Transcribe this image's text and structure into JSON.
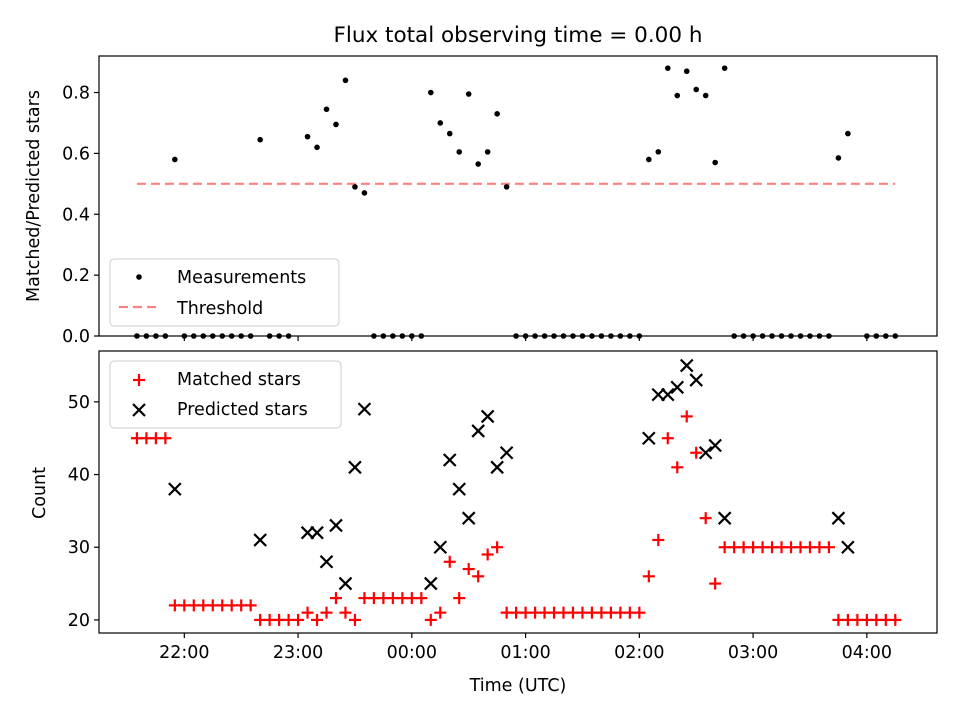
{
  "chart_data": [
    {
      "type": "scatter",
      "title": "Flux total observing time = 0.00 h",
      "xlabel": "",
      "ylabel": "Matched/Predicted stars",
      "ylim": [
        0,
        0.92
      ],
      "xlim": [
        "21:15",
        "04:37"
      ],
      "x_ticks": [
        "22:00",
        "23:00",
        "00:00",
        "01:00",
        "02:00",
        "03:00",
        "04:00"
      ],
      "y_ticks": [
        "0.0",
        "0.2",
        "0.4",
        "0.6",
        "0.8"
      ],
      "legend": {
        "placement": "lower-left",
        "entries": [
          "Measurements",
          "Threshold"
        ]
      },
      "threshold": {
        "name": "Threshold",
        "value": 0.5,
        "x_range": [
          "21:35",
          "04:15"
        ],
        "color": "#ff8080",
        "style": "dashed"
      },
      "series": [
        {
          "name": "Measurements",
          "color": "#000000",
          "points": [
            {
              "x": "21:35",
              "y": 0
            },
            {
              "x": "21:40",
              "y": 0
            },
            {
              "x": "21:45",
              "y": 0
            },
            {
              "x": "21:50",
              "y": 0
            },
            {
              "x": "21:55",
              "y": 0.58
            },
            {
              "x": "22:00",
              "y": 0
            },
            {
              "x": "22:05",
              "y": 0
            },
            {
              "x": "22:10",
              "y": 0
            },
            {
              "x": "22:15",
              "y": 0
            },
            {
              "x": "22:20",
              "y": 0
            },
            {
              "x": "22:25",
              "y": 0
            },
            {
              "x": "22:30",
              "y": 0
            },
            {
              "x": "22:35",
              "y": 0
            },
            {
              "x": "22:40",
              "y": 0.645
            },
            {
              "x": "22:45",
              "y": 0
            },
            {
              "x": "22:50",
              "y": 0
            },
            {
              "x": "22:55",
              "y": 0
            },
            {
              "x": "23:05",
              "y": 0.655
            },
            {
              "x": "23:10",
              "y": 0.62
            },
            {
              "x": "23:15",
              "y": 0.745
            },
            {
              "x": "23:20",
              "y": 0.695
            },
            {
              "x": "23:25",
              "y": 0.84
            },
            {
              "x": "23:30",
              "y": 0.49
            },
            {
              "x": "23:35",
              "y": 0.47
            },
            {
              "x": "23:40",
              "y": 0
            },
            {
              "x": "23:45",
              "y": 0
            },
            {
              "x": "23:50",
              "y": 0
            },
            {
              "x": "23:55",
              "y": 0
            },
            {
              "x": "00:00",
              "y": 0
            },
            {
              "x": "00:05",
              "y": 0
            },
            {
              "x": "00:10",
              "y": 0.8
            },
            {
              "x": "00:15",
              "y": 0.7
            },
            {
              "x": "00:20",
              "y": 0.665
            },
            {
              "x": "00:25",
              "y": 0.605
            },
            {
              "x": "00:30",
              "y": 0.795
            },
            {
              "x": "00:35",
              "y": 0.565
            },
            {
              "x": "00:40",
              "y": 0.605
            },
            {
              "x": "00:45",
              "y": 0.73
            },
            {
              "x": "00:50",
              "y": 0.49
            },
            {
              "x": "00:55",
              "y": 0
            },
            {
              "x": "01:00",
              "y": 0
            },
            {
              "x": "01:05",
              "y": 0
            },
            {
              "x": "01:10",
              "y": 0
            },
            {
              "x": "01:15",
              "y": 0
            },
            {
              "x": "01:20",
              "y": 0
            },
            {
              "x": "01:25",
              "y": 0
            },
            {
              "x": "01:30",
              "y": 0
            },
            {
              "x": "01:35",
              "y": 0
            },
            {
              "x": "01:40",
              "y": 0
            },
            {
              "x": "01:45",
              "y": 0
            },
            {
              "x": "01:50",
              "y": 0
            },
            {
              "x": "01:55",
              "y": 0
            },
            {
              "x": "02:00",
              "y": 0
            },
            {
              "x": "02:05",
              "y": 0.58
            },
            {
              "x": "02:10",
              "y": 0.605
            },
            {
              "x": "02:15",
              "y": 0.88
            },
            {
              "x": "02:20",
              "y": 0.79
            },
            {
              "x": "02:25",
              "y": 0.87
            },
            {
              "x": "02:30",
              "y": 0.81
            },
            {
              "x": "02:35",
              "y": 0.79
            },
            {
              "x": "02:40",
              "y": 0.57
            },
            {
              "x": "02:45",
              "y": 0.88
            },
            {
              "x": "02:50",
              "y": 0
            },
            {
              "x": "02:55",
              "y": 0
            },
            {
              "x": "03:00",
              "y": 0
            },
            {
              "x": "03:05",
              "y": 0
            },
            {
              "x": "03:10",
              "y": 0
            },
            {
              "x": "03:15",
              "y": 0
            },
            {
              "x": "03:20",
              "y": 0
            },
            {
              "x": "03:25",
              "y": 0
            },
            {
              "x": "03:30",
              "y": 0
            },
            {
              "x": "03:35",
              "y": 0
            },
            {
              "x": "03:40",
              "y": 0
            },
            {
              "x": "03:45",
              "y": 0.585
            },
            {
              "x": "03:50",
              "y": 0.665
            },
            {
              "x": "04:00",
              "y": 0
            },
            {
              "x": "04:05",
              "y": 0
            },
            {
              "x": "04:10",
              "y": 0
            },
            {
              "x": "04:15",
              "y": 0
            }
          ]
        }
      ]
    },
    {
      "type": "scatter",
      "title": "",
      "xlabel": "Time (UTC)",
      "ylabel": "Count",
      "ylim": [
        18.2,
        57
      ],
      "xlim": [
        "21:15",
        "04:37"
      ],
      "x_ticks": [
        "22:00",
        "23:00",
        "00:00",
        "01:00",
        "02:00",
        "03:00",
        "04:00"
      ],
      "y_ticks": [
        "20",
        "30",
        "40",
        "50"
      ],
      "legend": {
        "placement": "top-left",
        "entries": [
          "Matched stars",
          "Predicted stars"
        ]
      },
      "series": [
        {
          "name": "Matched stars",
          "marker": "plus",
          "color": "#ff0000",
          "points": [
            {
              "x": "21:35",
              "y": 45
            },
            {
              "x": "21:40",
              "y": 45
            },
            {
              "x": "21:45",
              "y": 45
            },
            {
              "x": "21:50",
              "y": 45
            },
            {
              "x": "21:55",
              "y": 22
            },
            {
              "x": "22:00",
              "y": 22
            },
            {
              "x": "22:05",
              "y": 22
            },
            {
              "x": "22:10",
              "y": 22
            },
            {
              "x": "22:15",
              "y": 22
            },
            {
              "x": "22:20",
              "y": 22
            },
            {
              "x": "22:25",
              "y": 22
            },
            {
              "x": "22:30",
              "y": 22
            },
            {
              "x": "22:35",
              "y": 22
            },
            {
              "x": "22:40",
              "y": 20
            },
            {
              "x": "22:45",
              "y": 20
            },
            {
              "x": "22:50",
              "y": 20
            },
            {
              "x": "22:55",
              "y": 20
            },
            {
              "x": "23:00",
              "y": 20
            },
            {
              "x": "23:05",
              "y": 21
            },
            {
              "x": "23:10",
              "y": 20
            },
            {
              "x": "23:15",
              "y": 21
            },
            {
              "x": "23:20",
              "y": 23
            },
            {
              "x": "23:25",
              "y": 21
            },
            {
              "x": "23:30",
              "y": 20
            },
            {
              "x": "23:35",
              "y": 23
            },
            {
              "x": "23:40",
              "y": 23
            },
            {
              "x": "23:45",
              "y": 23
            },
            {
              "x": "23:50",
              "y": 23
            },
            {
              "x": "23:55",
              "y": 23
            },
            {
              "x": "00:00",
              "y": 23
            },
            {
              "x": "00:05",
              "y": 23
            },
            {
              "x": "00:10",
              "y": 20
            },
            {
              "x": "00:15",
              "y": 21
            },
            {
              "x": "00:20",
              "y": 28
            },
            {
              "x": "00:25",
              "y": 23
            },
            {
              "x": "00:30",
              "y": 27
            },
            {
              "x": "00:35",
              "y": 26
            },
            {
              "x": "00:40",
              "y": 29
            },
            {
              "x": "00:45",
              "y": 30
            },
            {
              "x": "00:50",
              "y": 21
            },
            {
              "x": "00:55",
              "y": 21
            },
            {
              "x": "01:00",
              "y": 21
            },
            {
              "x": "01:05",
              "y": 21
            },
            {
              "x": "01:10",
              "y": 21
            },
            {
              "x": "01:15",
              "y": 21
            },
            {
              "x": "01:20",
              "y": 21
            },
            {
              "x": "01:25",
              "y": 21
            },
            {
              "x": "01:30",
              "y": 21
            },
            {
              "x": "01:35",
              "y": 21
            },
            {
              "x": "01:40",
              "y": 21
            },
            {
              "x": "01:45",
              "y": 21
            },
            {
              "x": "01:50",
              "y": 21
            },
            {
              "x": "01:55",
              "y": 21
            },
            {
              "x": "02:00",
              "y": 21
            },
            {
              "x": "02:05",
              "y": 26
            },
            {
              "x": "02:10",
              "y": 31
            },
            {
              "x": "02:15",
              "y": 45
            },
            {
              "x": "02:20",
              "y": 41
            },
            {
              "x": "02:25",
              "y": 48
            },
            {
              "x": "02:30",
              "y": 43
            },
            {
              "x": "02:35",
              "y": 34
            },
            {
              "x": "02:40",
              "y": 25
            },
            {
              "x": "02:45",
              "y": 30
            },
            {
              "x": "02:50",
              "y": 30
            },
            {
              "x": "02:55",
              "y": 30
            },
            {
              "x": "03:00",
              "y": 30
            },
            {
              "x": "03:05",
              "y": 30
            },
            {
              "x": "03:10",
              "y": 30
            },
            {
              "x": "03:15",
              "y": 30
            },
            {
              "x": "03:20",
              "y": 30
            },
            {
              "x": "03:25",
              "y": 30
            },
            {
              "x": "03:30",
              "y": 30
            },
            {
              "x": "03:35",
              "y": 30
            },
            {
              "x": "03:40",
              "y": 30
            },
            {
              "x": "03:45",
              "y": 20
            },
            {
              "x": "03:50",
              "y": 20
            },
            {
              "x": "03:55",
              "y": 20
            },
            {
              "x": "04:00",
              "y": 20
            },
            {
              "x": "04:05",
              "y": 20
            },
            {
              "x": "04:10",
              "y": 20
            },
            {
              "x": "04:15",
              "y": 20
            }
          ]
        },
        {
          "name": "Predicted stars",
          "marker": "x",
          "color": "#000000",
          "points": [
            {
              "x": "21:55",
              "y": 38
            },
            {
              "x": "22:40",
              "y": 31
            },
            {
              "x": "23:05",
              "y": 32
            },
            {
              "x": "23:10",
              "y": 32
            },
            {
              "x": "23:15",
              "y": 28
            },
            {
              "x": "23:20",
              "y": 33
            },
            {
              "x": "23:25",
              "y": 25
            },
            {
              "x": "23:30",
              "y": 41
            },
            {
              "x": "23:35",
              "y": 49
            },
            {
              "x": "00:10",
              "y": 25
            },
            {
              "x": "00:15",
              "y": 30
            },
            {
              "x": "00:20",
              "y": 42
            },
            {
              "x": "00:25",
              "y": 38
            },
            {
              "x": "00:30",
              "y": 34
            },
            {
              "x": "00:35",
              "y": 46
            },
            {
              "x": "00:40",
              "y": 48
            },
            {
              "x": "00:45",
              "y": 41
            },
            {
              "x": "00:50",
              "y": 43
            },
            {
              "x": "02:05",
              "y": 45
            },
            {
              "x": "02:10",
              "y": 51
            },
            {
              "x": "02:15",
              "y": 51
            },
            {
              "x": "02:20",
              "y": 52
            },
            {
              "x": "02:25",
              "y": 55
            },
            {
              "x": "02:30",
              "y": 53
            },
            {
              "x": "02:35",
              "y": 43
            },
            {
              "x": "02:40",
              "y": 44
            },
            {
              "x": "02:45",
              "y": 34
            },
            {
              "x": "03:45",
              "y": 34
            },
            {
              "x": "03:50",
              "y": 30
            }
          ]
        }
      ]
    }
  ]
}
